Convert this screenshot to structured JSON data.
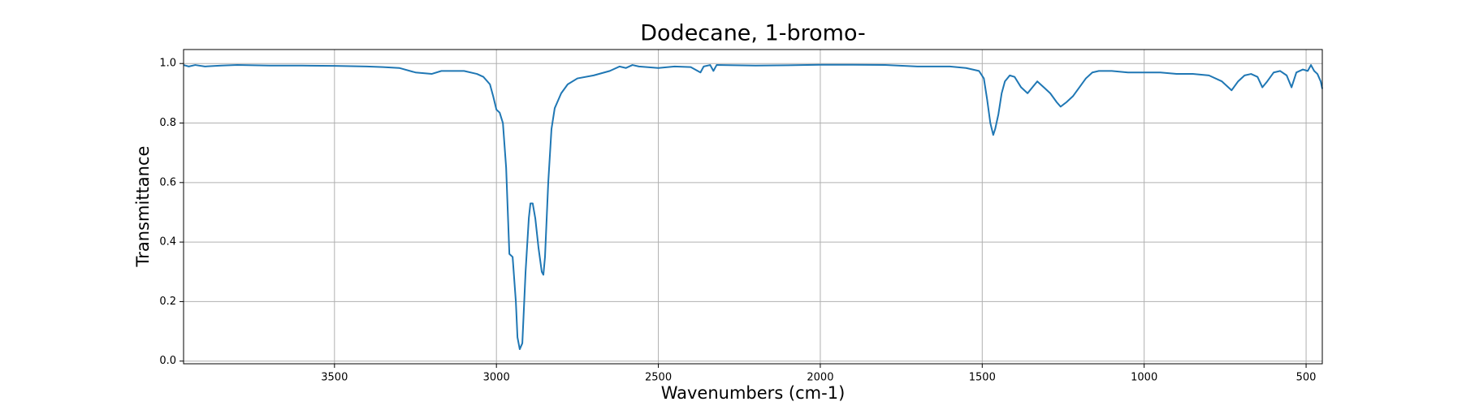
{
  "chart_data": {
    "type": "line",
    "title": "Dodecane, 1-bromo-",
    "xlabel": "Wavenumbers (cm-1)",
    "ylabel": "Transmittance",
    "color": "#1f77b4",
    "grid": true,
    "xlim": [
      3966,
      450
    ],
    "ylim": [
      -0.009,
      1.047
    ],
    "xticks": [
      3500,
      3000,
      2500,
      2000,
      1500,
      1000,
      500
    ],
    "yticks": [
      {
        "value": 0,
        "label": "0.0"
      },
      0.2,
      0.4,
      0.6,
      0.8,
      {
        "value": 1,
        "label": "1.0"
      }
    ],
    "x": [
      3966,
      3950,
      3930,
      3900,
      3850,
      3800,
      3700,
      3600,
      3500,
      3400,
      3350,
      3300,
      3250,
      3200,
      3170,
      3150,
      3100,
      3060,
      3040,
      3020,
      3010,
      3000,
      2990,
      2980,
      2970,
      2960,
      2950,
      2940,
      2935,
      2928,
      2920,
      2910,
      2900,
      2895,
      2888,
      2880,
      2870,
      2860,
      2855,
      2850,
      2840,
      2830,
      2820,
      2800,
      2780,
      2750,
      2700,
      2650,
      2620,
      2600,
      2580,
      2560,
      2500,
      2450,
      2400,
      2370,
      2360,
      2340,
      2330,
      2320,
      2200,
      2100,
      2000,
      1900,
      1800,
      1700,
      1600,
      1550,
      1510,
      1495,
      1485,
      1475,
      1466,
      1460,
      1450,
      1440,
      1430,
      1415,
      1400,
      1380,
      1360,
      1345,
      1330,
      1310,
      1290,
      1270,
      1258,
      1240,
      1220,
      1200,
      1180,
      1160,
      1140,
      1100,
      1050,
      1000,
      950,
      900,
      850,
      800,
      760,
      730,
      710,
      690,
      670,
      650,
      635,
      620,
      600,
      580,
      560,
      545,
      530,
      510,
      495,
      485,
      475,
      465,
      455,
      450
    ],
    "values": [
      0.995,
      0.99,
      0.995,
      0.99,
      0.993,
      0.995,
      0.993,
      0.993,
      0.992,
      0.99,
      0.988,
      0.985,
      0.97,
      0.965,
      0.975,
      0.975,
      0.975,
      0.965,
      0.955,
      0.93,
      0.89,
      0.845,
      0.835,
      0.8,
      0.65,
      0.36,
      0.35,
      0.2,
      0.08,
      0.04,
      0.06,
      0.3,
      0.48,
      0.53,
      0.53,
      0.48,
      0.38,
      0.3,
      0.29,
      0.35,
      0.6,
      0.78,
      0.85,
      0.9,
      0.93,
      0.95,
      0.96,
      0.975,
      0.99,
      0.985,
      0.995,
      0.99,
      0.985,
      0.99,
      0.988,
      0.97,
      0.99,
      0.995,
      0.975,
      0.995,
      0.993,
      0.994,
      0.996,
      0.996,
      0.995,
      0.99,
      0.99,
      0.985,
      0.975,
      0.95,
      0.88,
      0.8,
      0.76,
      0.78,
      0.83,
      0.9,
      0.94,
      0.96,
      0.955,
      0.92,
      0.9,
      0.92,
      0.94,
      0.92,
      0.9,
      0.87,
      0.855,
      0.87,
      0.89,
      0.92,
      0.95,
      0.97,
      0.975,
      0.975,
      0.97,
      0.97,
      0.97,
      0.965,
      0.965,
      0.96,
      0.94,
      0.91,
      0.94,
      0.96,
      0.965,
      0.955,
      0.92,
      0.94,
      0.97,
      0.975,
      0.96,
      0.92,
      0.97,
      0.98,
      0.975,
      0.995,
      0.975,
      0.965,
      0.94,
      0.915
    ]
  }
}
